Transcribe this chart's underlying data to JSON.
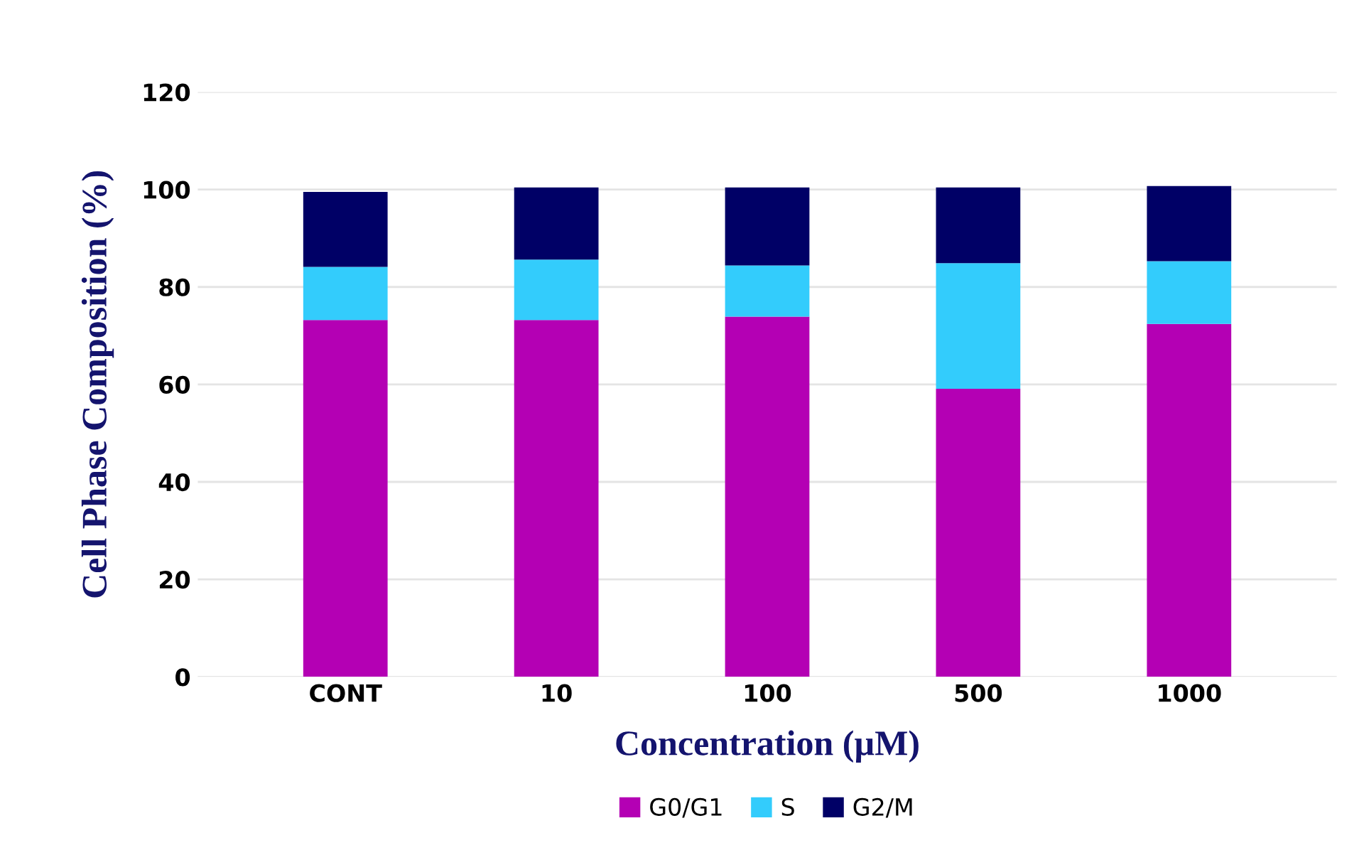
{
  "chart_data": {
    "type": "bar",
    "stacked": true,
    "xlabel": "Concentration (µM)",
    "ylabel": "Cell Phase Composition (%)",
    "categories": [
      "CONT",
      "10",
      "100",
      "500",
      "1000"
    ],
    "series": [
      {
        "name": "G0/G1",
        "color": "#b400b4",
        "values": [
          73.2,
          73.2,
          73.9,
          59.1,
          72.4
        ]
      },
      {
        "name": "S",
        "color": "#33ccfc",
        "values": [
          10.9,
          12.4,
          10.5,
          25.8,
          12.9
        ]
      },
      {
        "name": "G2/M",
        "color": "#000066",
        "values": [
          15.4,
          14.8,
          16.0,
          15.5,
          15.4
        ]
      }
    ],
    "ylim": [
      0,
      120
    ],
    "yticks": [
      0,
      20,
      40,
      60,
      80,
      100,
      120
    ],
    "grid": "y",
    "legend": "bottom"
  }
}
